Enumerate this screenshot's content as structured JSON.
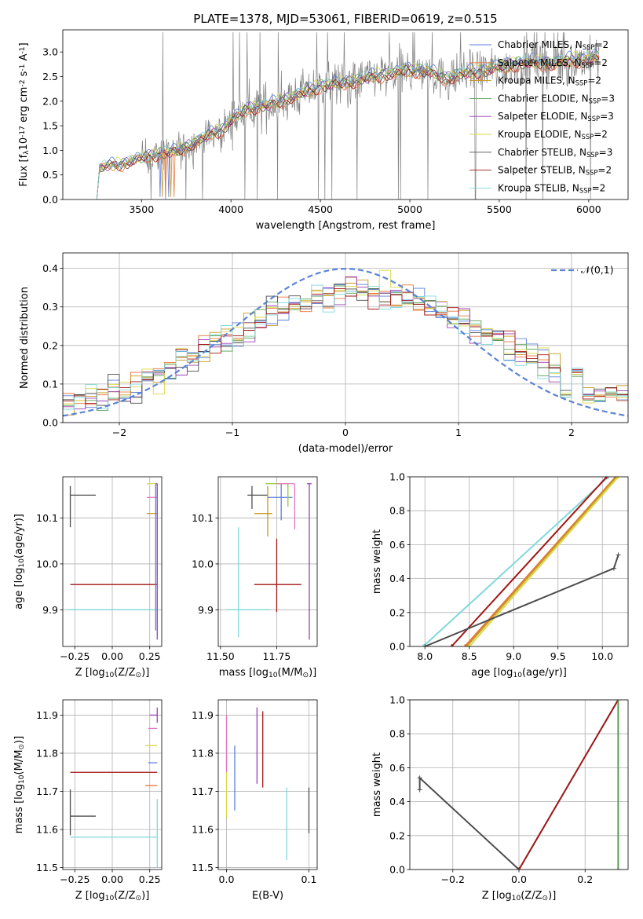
{
  "figure": {
    "title": "PLATE=1378, MJD=53061, FIBERID=0619, z=0.515"
  },
  "colors": {
    "Chabrier MILES": "#5b7fde",
    "Salpeter MILES": "#e8743b",
    "Kroupa MILES": "#c8961e",
    "Chabrier ELODIE": "#5a9e55",
    "Salpeter ELODIE": "#9b3fb5",
    "Kroupa ELODIE": "#d9d94a",
    "Chabrier STELIB": "#4d4d4d",
    "Salpeter STELIB": "#a31515",
    "Kroupa STELIB": "#7fd8dc",
    "pink": "#e377c2",
    "lime": "#8fc93a",
    "data": "#808080",
    "gauss": "#5b84d6"
  },
  "legend_models": [
    "Chabrier MILES, N$_{SSP}$=2",
    "Salpeter MILES, N$_{SSP}$=2",
    "Kroupa MILES, N$_{SSP}$=2",
    "Chabrier ELODIE, N$_{SSP}$=3",
    "Salpeter ELODIE, N$_{SSP}$=3",
    "Kroupa ELODIE, N$_{SSP}$=2",
    "Chabrier STELIB, N$_{SSP}$=3",
    "Salpeter STELIB, N$_{SSP}$=2",
    "Kroupa STELIB, N$_{SSP}$=2"
  ],
  "chart_data": [
    {
      "panel": "spectrum",
      "type": "line",
      "xlabel": "wavelength [Angstrom, rest frame]",
      "ylabel": "Flux [f$_\\lambda$10$^{-17}$ erg cm$^{-2}$ s$^{-1}$ A$^{-1}$]",
      "xlim": [
        3060,
        6220
      ],
      "ylim": [
        0,
        3.45
      ],
      "xticks": [
        3500,
        4000,
        4500,
        5000,
        5500,
        6000
      ],
      "yticks": [
        0.0,
        0.5,
        1.0,
        1.5,
        2.0,
        2.5,
        3.0
      ],
      "grid": false,
      "legend": "upper right",
      "data_range": [
        3250,
        6060
      ],
      "continuum_knots": [
        [
          3250,
          0.0
        ],
        [
          3265,
          0.62
        ],
        [
          3300,
          0.68
        ],
        [
          3400,
          0.72
        ],
        [
          3500,
          0.84
        ],
        [
          3600,
          0.92
        ],
        [
          3700,
          0.98
        ],
        [
          3800,
          1.15
        ],
        [
          3900,
          1.35
        ],
        [
          3950,
          1.4
        ],
        [
          4000,
          1.6
        ],
        [
          4100,
          1.85
        ],
        [
          4200,
          1.9
        ],
        [
          4300,
          2.02
        ],
        [
          4400,
          2.15
        ],
        [
          4500,
          2.3
        ],
        [
          4600,
          2.35
        ],
        [
          4700,
          2.4
        ],
        [
          4800,
          2.5
        ],
        [
          4900,
          2.55
        ],
        [
          5000,
          2.62
        ],
        [
          5100,
          2.6
        ],
        [
          5200,
          2.45
        ],
        [
          5300,
          2.55
        ],
        [
          5400,
          2.6
        ],
        [
          5500,
          2.68
        ],
        [
          5600,
          2.75
        ],
        [
          5700,
          2.78
        ],
        [
          5800,
          2.75
        ],
        [
          5900,
          2.82
        ],
        [
          6000,
          2.85
        ],
        [
          6060,
          2.88
        ]
      ]
    },
    {
      "panel": "residuals",
      "type": "histogram",
      "xlabel": "(data-model)/error",
      "ylabel": "Normed distribution",
      "xlim": [
        -2.5,
        2.5
      ],
      "ylim": [
        0,
        0.44
      ],
      "xticks": [
        -2,
        -1,
        0,
        1,
        2
      ],
      "yticks": [
        0.0,
        0.1,
        0.2,
        0.3,
        0.4
      ],
      "grid": true,
      "legend": "upper right",
      "legend_label": "$\\mathcal{N}(0,1)$",
      "bin_width": 0.1
    },
    {
      "panel": "Z-age",
      "type": "errorbar",
      "xlabel": "Z [log$_{10}$($Z/Z_\\odot$)]",
      "ylabel": "age  [log$_{10}$($age/yr$)]",
      "xlim": [
        -0.33,
        0.33
      ],
      "ylim": [
        9.82,
        10.19
      ],
      "xticks": [
        -0.25,
        0.0,
        0.25
      ],
      "yticks": [
        9.9,
        10.0,
        10.1
      ],
      "grid": true,
      "points": [
        {
          "model": "Chabrier STELIB",
          "x": -0.28,
          "xerr": [
            0,
            0.17
          ],
          "y": 10.15,
          "yerr": [
            0.07,
            0.02
          ]
        },
        {
          "model": "Salpeter STELIB",
          "x": 0.3,
          "xerr": [
            0.58,
            0
          ],
          "y": 9.955,
          "yerr": [
            0,
            0
          ]
        },
        {
          "model": "Kroupa STELIB",
          "x": 0.3,
          "xerr": [
            0.6,
            0
          ],
          "y": 9.9,
          "yerr": [
            0,
            0
          ]
        },
        {
          "model": "Kroupa MILES",
          "x": 0.3,
          "xerr": [
            0.07,
            0
          ],
          "y": 10.11,
          "yerr": [
            0,
            0
          ]
        },
        {
          "model": "pink",
          "x": 0.3,
          "xerr": [
            0.07,
            0
          ],
          "y": 10.145,
          "yerr": [
            0,
            0
          ]
        },
        {
          "model": "Kroupa ELODIE",
          "x": 0.3,
          "xerr": [
            0.07,
            0
          ],
          "y": 10.175,
          "yerr": [
            0,
            0
          ]
        },
        {
          "model": "Salpeter ELODIE",
          "x": 0.3,
          "xerr": [
            0.01,
            0
          ],
          "y": 10.175,
          "yerr": [
            0.34,
            0
          ]
        },
        {
          "model": "Chabrier MILES",
          "x": 0.29,
          "xerr": [
            0,
            0
          ],
          "y": 10.175,
          "yerr": [
            0.32,
            0
          ]
        }
      ]
    },
    {
      "panel": "mass-age",
      "type": "errorbar",
      "xlabel": "mass [log$_{10}$($M/M_\\odot$)]",
      "ylabel": "",
      "xlim": [
        11.49,
        11.93
      ],
      "ylim": [
        9.82,
        10.19
      ],
      "xticks": [
        11.5,
        11.75
      ],
      "yticks": [
        9.9,
        10.0,
        10.1
      ],
      "grid": true,
      "points": [
        {
          "model": "Chabrier STELIB",
          "x": 11.64,
          "xerr": [
            0.02,
            0.07
          ],
          "y": 10.15,
          "yerr": [
            0.03,
            0.02
          ]
        },
        {
          "model": "Kroupa STELIB",
          "x": 11.58,
          "xerr": [
            0.05,
            0.14
          ],
          "y": 9.9,
          "yerr": [
            0.06,
            0.18
          ]
        },
        {
          "model": "Salpeter STELIB",
          "x": 11.75,
          "xerr": [
            0.1,
            0.11
          ],
          "y": 9.955,
          "yerr": [
            0.06,
            0.1
          ]
        },
        {
          "model": "Kroupa MILES",
          "x": 11.71,
          "xerr": [
            0.06,
            0.02
          ],
          "y": 10.11,
          "yerr": [
            0.05,
            0.06
          ]
        },
        {
          "model": "Chabrier MILES",
          "x": 11.77,
          "xerr": [
            0.06,
            0.05
          ],
          "y": 10.145,
          "yerr": [
            0.05,
            0.03
          ]
        },
        {
          "model": "lime",
          "x": 11.8,
          "xerr": [
            0.1,
            0
          ],
          "y": 10.175,
          "yerr": [
            0.05,
            0
          ]
        },
        {
          "model": "pink",
          "x": 11.83,
          "xerr": [
            0.08,
            0
          ],
          "y": 10.175,
          "yerr": [
            0.1,
            0
          ]
        },
        {
          "model": "Salpeter ELODIE",
          "x": 11.895,
          "xerr": [
            0.01,
            0.01
          ],
          "y": 10.175,
          "yerr": [
            0.34,
            0
          ]
        }
      ]
    },
    {
      "panel": "age-weight",
      "type": "line",
      "xlabel": "age  [log$_{10}$($age/yr$)]",
      "ylabel": "mass weight",
      "xlim": [
        7.83,
        10.29
      ],
      "ylim": [
        0,
        1.0
      ],
      "xticks": [
        8.0,
        8.5,
        9.0,
        9.5,
        10.0
      ],
      "yticks": [
        0.0,
        0.2,
        0.4,
        0.6,
        0.8,
        1.0
      ],
      "grid": true,
      "lines": [
        {
          "model": "Kroupa STELIB",
          "points": [
            [
              7.98,
              0.0
            ],
            [
              10.07,
              1.0
            ]
          ]
        },
        {
          "model": "Salpeter STELIB",
          "points": [
            [
              8.3,
              0.0
            ],
            [
              10.05,
              1.0
            ]
          ]
        },
        {
          "model": "Salpeter MILES",
          "points": [
            [
              8.45,
              0.0
            ],
            [
              10.15,
              1.0
            ]
          ]
        },
        {
          "model": "Kroupa MILES",
          "points": [
            [
              8.47,
              0.0
            ],
            [
              10.16,
              1.0
            ]
          ]
        },
        {
          "model": "Kroupa ELODIE",
          "points": [
            [
              8.5,
              0.0
            ],
            [
              10.18,
              1.0
            ]
          ]
        },
        {
          "model": "Chabrier STELIB",
          "points": [
            [
              8.0,
              0.0
            ],
            [
              10.13,
              0.46
            ],
            [
              10.18,
              0.54
            ]
          ]
        }
      ]
    },
    {
      "panel": "Z-mass",
      "type": "errorbar",
      "xlabel": "Z [log$_{10}$($Z/Z_\\odot$)]",
      "ylabel": "mass [log$_{10}$($M/M_\\odot$)]",
      "xlim": [
        -0.33,
        0.33
      ],
      "ylim": [
        11.495,
        11.94
      ],
      "xticks": [
        -0.25,
        0.0,
        0.25
      ],
      "yticks": [
        11.5,
        11.6,
        11.7,
        11.8,
        11.9
      ],
      "grid": true,
      "points": [
        {
          "model": "Chabrier STELIB",
          "x": -0.28,
          "xerr": [
            0,
            0.17
          ],
          "y": 11.635,
          "yerr": [
            0.05,
            0.07
          ]
        },
        {
          "model": "Kroupa STELIB",
          "x": 0.3,
          "xerr": [
            0.58,
            0
          ],
          "y": 11.58,
          "yerr": [
            0.08,
            0.1
          ]
        },
        {
          "model": "Salpeter STELIB",
          "x": 0.3,
          "xerr": [
            0.58,
            0
          ],
          "y": 11.75,
          "yerr": [
            0,
            0
          ]
        },
        {
          "model": "Salpeter MILES",
          "x": 0.3,
          "xerr": [
            0.08,
            0
          ],
          "y": 11.715,
          "yerr": [
            0,
            0
          ]
        },
        {
          "model": "Chabrier MILES",
          "x": 0.3,
          "xerr": [
            0.06,
            0
          ],
          "y": 11.775,
          "yerr": [
            0,
            0
          ]
        },
        {
          "model": "Kroupa ELODIE",
          "x": 0.3,
          "xerr": [
            0.08,
            0
          ],
          "y": 11.82,
          "yerr": [
            0,
            0
          ]
        },
        {
          "model": "pink",
          "x": 0.3,
          "xerr": [
            0.06,
            0
          ],
          "y": 11.865,
          "yerr": [
            0,
            0
          ]
        },
        {
          "model": "Salpeter ELODIE",
          "x": 0.3,
          "xerr": [
            0.05,
            0
          ],
          "y": 11.9,
          "yerr": [
            0.02,
            0.02
          ]
        }
      ]
    },
    {
      "panel": "EBV-mass",
      "type": "errorbar",
      "xlabel": "E(B-V)",
      "ylabel": "",
      "xlim": [
        -0.01,
        0.11
      ],
      "ylim": [
        11.495,
        11.94
      ],
      "xticks": [
        0.0,
        0.1
      ],
      "yticks": [
        11.5,
        11.6,
        11.7,
        11.8,
        11.9
      ],
      "grid": true,
      "points": [
        {
          "model": "Kroupa ELODIE",
          "x": 0.0,
          "y": 11.73,
          "yerr": [
            0.1,
            0.11
          ]
        },
        {
          "model": "pink",
          "x": 0.0,
          "y": 11.83,
          "yerr": [
            0.08,
            0.07
          ]
        },
        {
          "model": "Chabrier MILES",
          "x": 0.01,
          "y": 11.73,
          "yerr": [
            0.08,
            0.09
          ]
        },
        {
          "model": "Salpeter ELODIE",
          "x": 0.037,
          "y": 11.82,
          "yerr": [
            0.1,
            0.1
          ]
        },
        {
          "model": "Salpeter STELIB",
          "x": 0.044,
          "y": 11.81,
          "yerr": [
            0.1,
            0.1
          ]
        },
        {
          "model": "Kroupa STELIB",
          "x": 0.073,
          "y": 11.62,
          "yerr": [
            0.1,
            0.09
          ]
        },
        {
          "model": "Chabrier STELIB",
          "x": 0.1,
          "y": 11.65,
          "yerr": [
            0.06,
            0.06
          ]
        }
      ]
    },
    {
      "panel": "Z-weight",
      "type": "line",
      "xlabel": "Z [log$_{10}$($Z/Z_\\odot$)]",
      "ylabel": "mass weight",
      "xlim": [
        -0.33,
        0.33
      ],
      "ylim": [
        0,
        1.0
      ],
      "xticks": [
        -0.2,
        0.0,
        0.2
      ],
      "yticks": [
        0.0,
        0.2,
        0.4,
        0.6,
        0.8,
        1.0
      ],
      "grid": true,
      "lines": [
        {
          "model": "Chabrier STELIB",
          "points": [
            [
              -0.3,
              0.47
            ],
            [
              -0.3,
              0.54
            ],
            [
              0.0,
              0.0
            ]
          ]
        },
        {
          "model": "Kroupa STELIB",
          "points": [
            [
              0.0,
              0.0
            ],
            [
              0.3,
              1.0
            ]
          ]
        },
        {
          "model": "Salpeter STELIB",
          "points": [
            [
              0.0,
              0.0
            ],
            [
              0.3,
              1.0
            ]
          ]
        },
        {
          "model": "Chabrier ELODIE",
          "points": [
            [
              0.3,
              0.0
            ],
            [
              0.3,
              1.0
            ]
          ]
        }
      ]
    }
  ]
}
